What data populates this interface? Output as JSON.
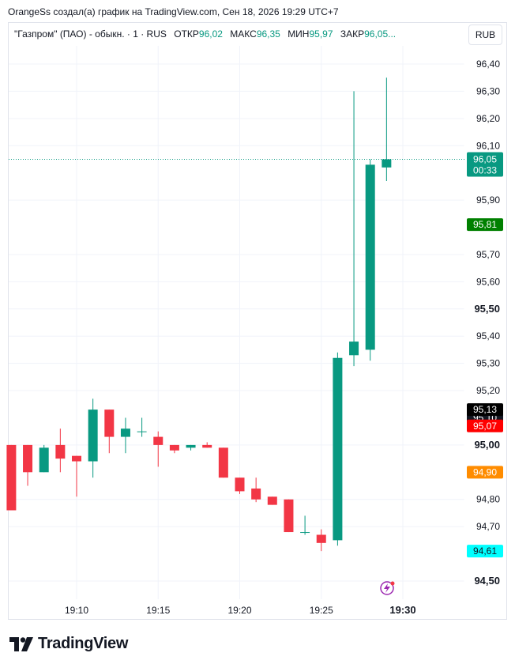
{
  "header": {
    "text": "OrangeSs создал(а) график на TradingView.com, Сен 18, 2026 19:29 UTC+7"
  },
  "legend": {
    "symbol": "\"Газпром\" (ПАО) - обыкн. · 1 · RUS",
    "open_label": "ОТКР",
    "open_value": "96,02",
    "high_label": "МАКС",
    "high_value": "96,35",
    "low_label": "МИН",
    "low_value": "95,97",
    "close_label": "ЗАКР",
    "close_value": "96,05..."
  },
  "currency_button": "RUB",
  "footer": {
    "brand": "TradingView"
  },
  "colors": {
    "up": "#089981",
    "down": "#f23645",
    "grid": "#f0f3fa",
    "text": "#131722"
  },
  "chart_data": {
    "type": "candlestick",
    "y_tick_labels": [
      "96,40",
      "96,30",
      "96,20",
      "96,10",
      "95,90",
      "95,70",
      "95,60",
      "95,50",
      "95,40",
      "95,30",
      "95,20",
      "95,00",
      "94,80",
      "94,70",
      "94,50"
    ],
    "y_ticks": [
      96.4,
      96.3,
      96.2,
      96.1,
      95.9,
      95.7,
      95.6,
      95.5,
      95.4,
      95.3,
      95.2,
      95.0,
      94.8,
      94.7,
      94.5
    ],
    "bold_ticks": [
      95.5,
      95.0,
      94.5
    ],
    "ylim": [
      94.44,
      96.47
    ],
    "x_tick_labels": [
      "19:10",
      "19:15",
      "19:20",
      "19:25",
      "19:30"
    ],
    "bold_x_ticks": [
      "19:30"
    ],
    "x_tick_minutes": [
      10,
      15,
      20,
      25,
      30
    ],
    "xlim_minutes": [
      5.6,
      32.2
    ],
    "grid": true,
    "candles": [
      {
        "t": 6,
        "o": 95.0,
        "h": 95.0,
        "l": 94.76,
        "c": 94.76
      },
      {
        "t": 7,
        "o": 95.0,
        "h": 95.0,
        "l": 94.85,
        "c": 94.9
      },
      {
        "t": 8,
        "o": 94.9,
        "h": 95.0,
        "l": 94.9,
        "c": 94.99
      },
      {
        "t": 9,
        "o": 95.0,
        "h": 95.06,
        "l": 94.9,
        "c": 94.95
      },
      {
        "t": 10,
        "o": 94.96,
        "h": 94.96,
        "l": 94.81,
        "c": 94.94
      },
      {
        "t": 11,
        "o": 94.94,
        "h": 95.17,
        "l": 94.88,
        "c": 95.13
      },
      {
        "t": 12,
        "o": 95.13,
        "h": 95.13,
        "l": 94.97,
        "c": 95.03
      },
      {
        "t": 13,
        "o": 95.03,
        "h": 95.1,
        "l": 94.97,
        "c": 95.06
      },
      {
        "t": 14,
        "o": 95.05,
        "h": 95.1,
        "l": 95.03,
        "c": 95.05
      },
      {
        "t": 15,
        "o": 95.03,
        "h": 95.05,
        "l": 94.92,
        "c": 95.0
      },
      {
        "t": 16,
        "o": 95.0,
        "h": 95.0,
        "l": 94.97,
        "c": 94.98
      },
      {
        "t": 17,
        "o": 94.99,
        "h": 95.0,
        "l": 94.98,
        "c": 95.0
      },
      {
        "t": 18,
        "o": 95.0,
        "h": 95.01,
        "l": 94.99,
        "c": 94.99
      },
      {
        "t": 19,
        "o": 94.99,
        "h": 94.99,
        "l": 94.88,
        "c": 94.88
      },
      {
        "t": 20,
        "o": 94.88,
        "h": 94.88,
        "l": 94.82,
        "c": 94.83
      },
      {
        "t": 21,
        "o": 94.84,
        "h": 94.88,
        "l": 94.79,
        "c": 94.8
      },
      {
        "t": 22,
        "o": 94.81,
        "h": 94.81,
        "l": 94.78,
        "c": 94.78
      },
      {
        "t": 23,
        "o": 94.8,
        "h": 94.8,
        "l": 94.68,
        "c": 94.68
      },
      {
        "t": 24,
        "o": 94.68,
        "h": 94.74,
        "l": 94.67,
        "c": 94.68
      },
      {
        "t": 25,
        "o": 94.67,
        "h": 94.69,
        "l": 94.61,
        "c": 94.64
      },
      {
        "t": 26,
        "o": 94.65,
        "h": 95.34,
        "l": 94.63,
        "c": 95.32
      },
      {
        "t": 27,
        "o": 95.33,
        "h": 96.3,
        "l": 95.29,
        "c": 95.38
      },
      {
        "t": 28,
        "o": 95.35,
        "h": 96.05,
        "l": 95.31,
        "c": 96.03
      },
      {
        "t": 29,
        "o": 96.02,
        "h": 96.35,
        "l": 95.97,
        "c": 96.05
      }
    ],
    "current_price": {
      "value": 96.05,
      "label": "96,05",
      "timer": "00:33",
      "color": "#089981"
    },
    "price_markers": [
      {
        "value": 95.81,
        "label": "95,81",
        "bg": "#008000",
        "fg": "#ffffff"
      },
      {
        "value": 95.1,
        "label": "95,10",
        "bg": "#131722",
        "fg": "#ffffff"
      },
      {
        "value": 95.13,
        "label": "95,13",
        "bg": "#000000",
        "fg": "#ffffff"
      },
      {
        "value": 95.07,
        "label": "95,07",
        "bg": "#ff0000",
        "fg": "#ffffff"
      },
      {
        "value": 94.9,
        "label": "94,90",
        "bg": "#ff8c00",
        "fg": "#ffffff"
      },
      {
        "value": 94.61,
        "label": "94,61",
        "bg": "#00ffff",
        "fg": "#131722"
      }
    ]
  }
}
